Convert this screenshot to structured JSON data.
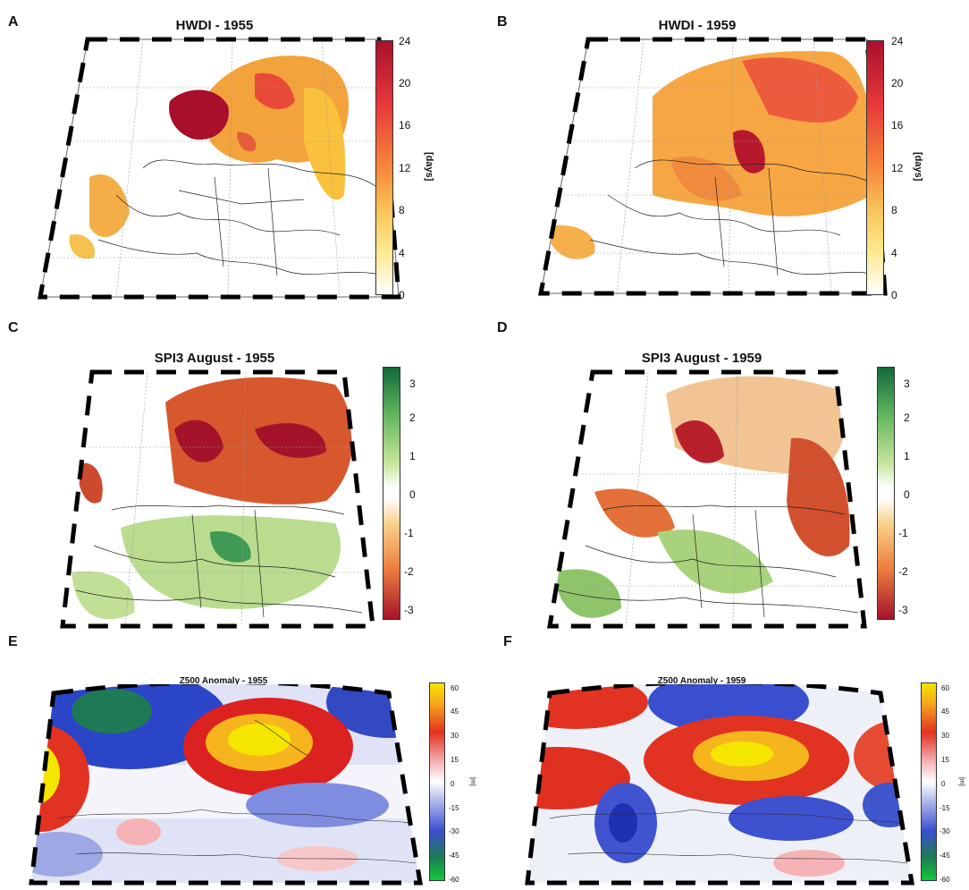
{
  "panels": {
    "A": {
      "letter": "A",
      "title": "HWDI - 1955"
    },
    "B": {
      "letter": "B",
      "title": "HWDI - 1959"
    },
    "C": {
      "letter": "C",
      "title": "SPI3 August - 1955"
    },
    "D": {
      "letter": "D",
      "title": "SPI3 August - 1959"
    },
    "E": {
      "letter": "E",
      "title": "Z500 Anomaly - 1955"
    },
    "F": {
      "letter": "F",
      "title": "Z500 Anomaly - 1959"
    }
  },
  "colorbars": {
    "hwdi": {
      "ticks": [
        "24",
        "20",
        "16",
        "12",
        "8",
        "4",
        "0"
      ],
      "unit": "[days]"
    },
    "spi": {
      "ticks": [
        "3",
        "2",
        "1",
        "0",
        "-1",
        "-2",
        "-3"
      ]
    },
    "z500": {
      "ticks": [
        "60",
        "45",
        "30",
        "15",
        "0",
        "-15",
        "-30",
        "-45",
        "-60"
      ],
      "unit": "[m]"
    }
  },
  "colors": {
    "hwdi_low": "#ffffff",
    "hwdi_mid": "#f9c55a",
    "hwdi_high": "#a8102c",
    "spi_dry": "#a5132a",
    "spi_wet": "#11693a",
    "z_neg": "#1d2ea8",
    "z_pos": "#f5e600"
  }
}
